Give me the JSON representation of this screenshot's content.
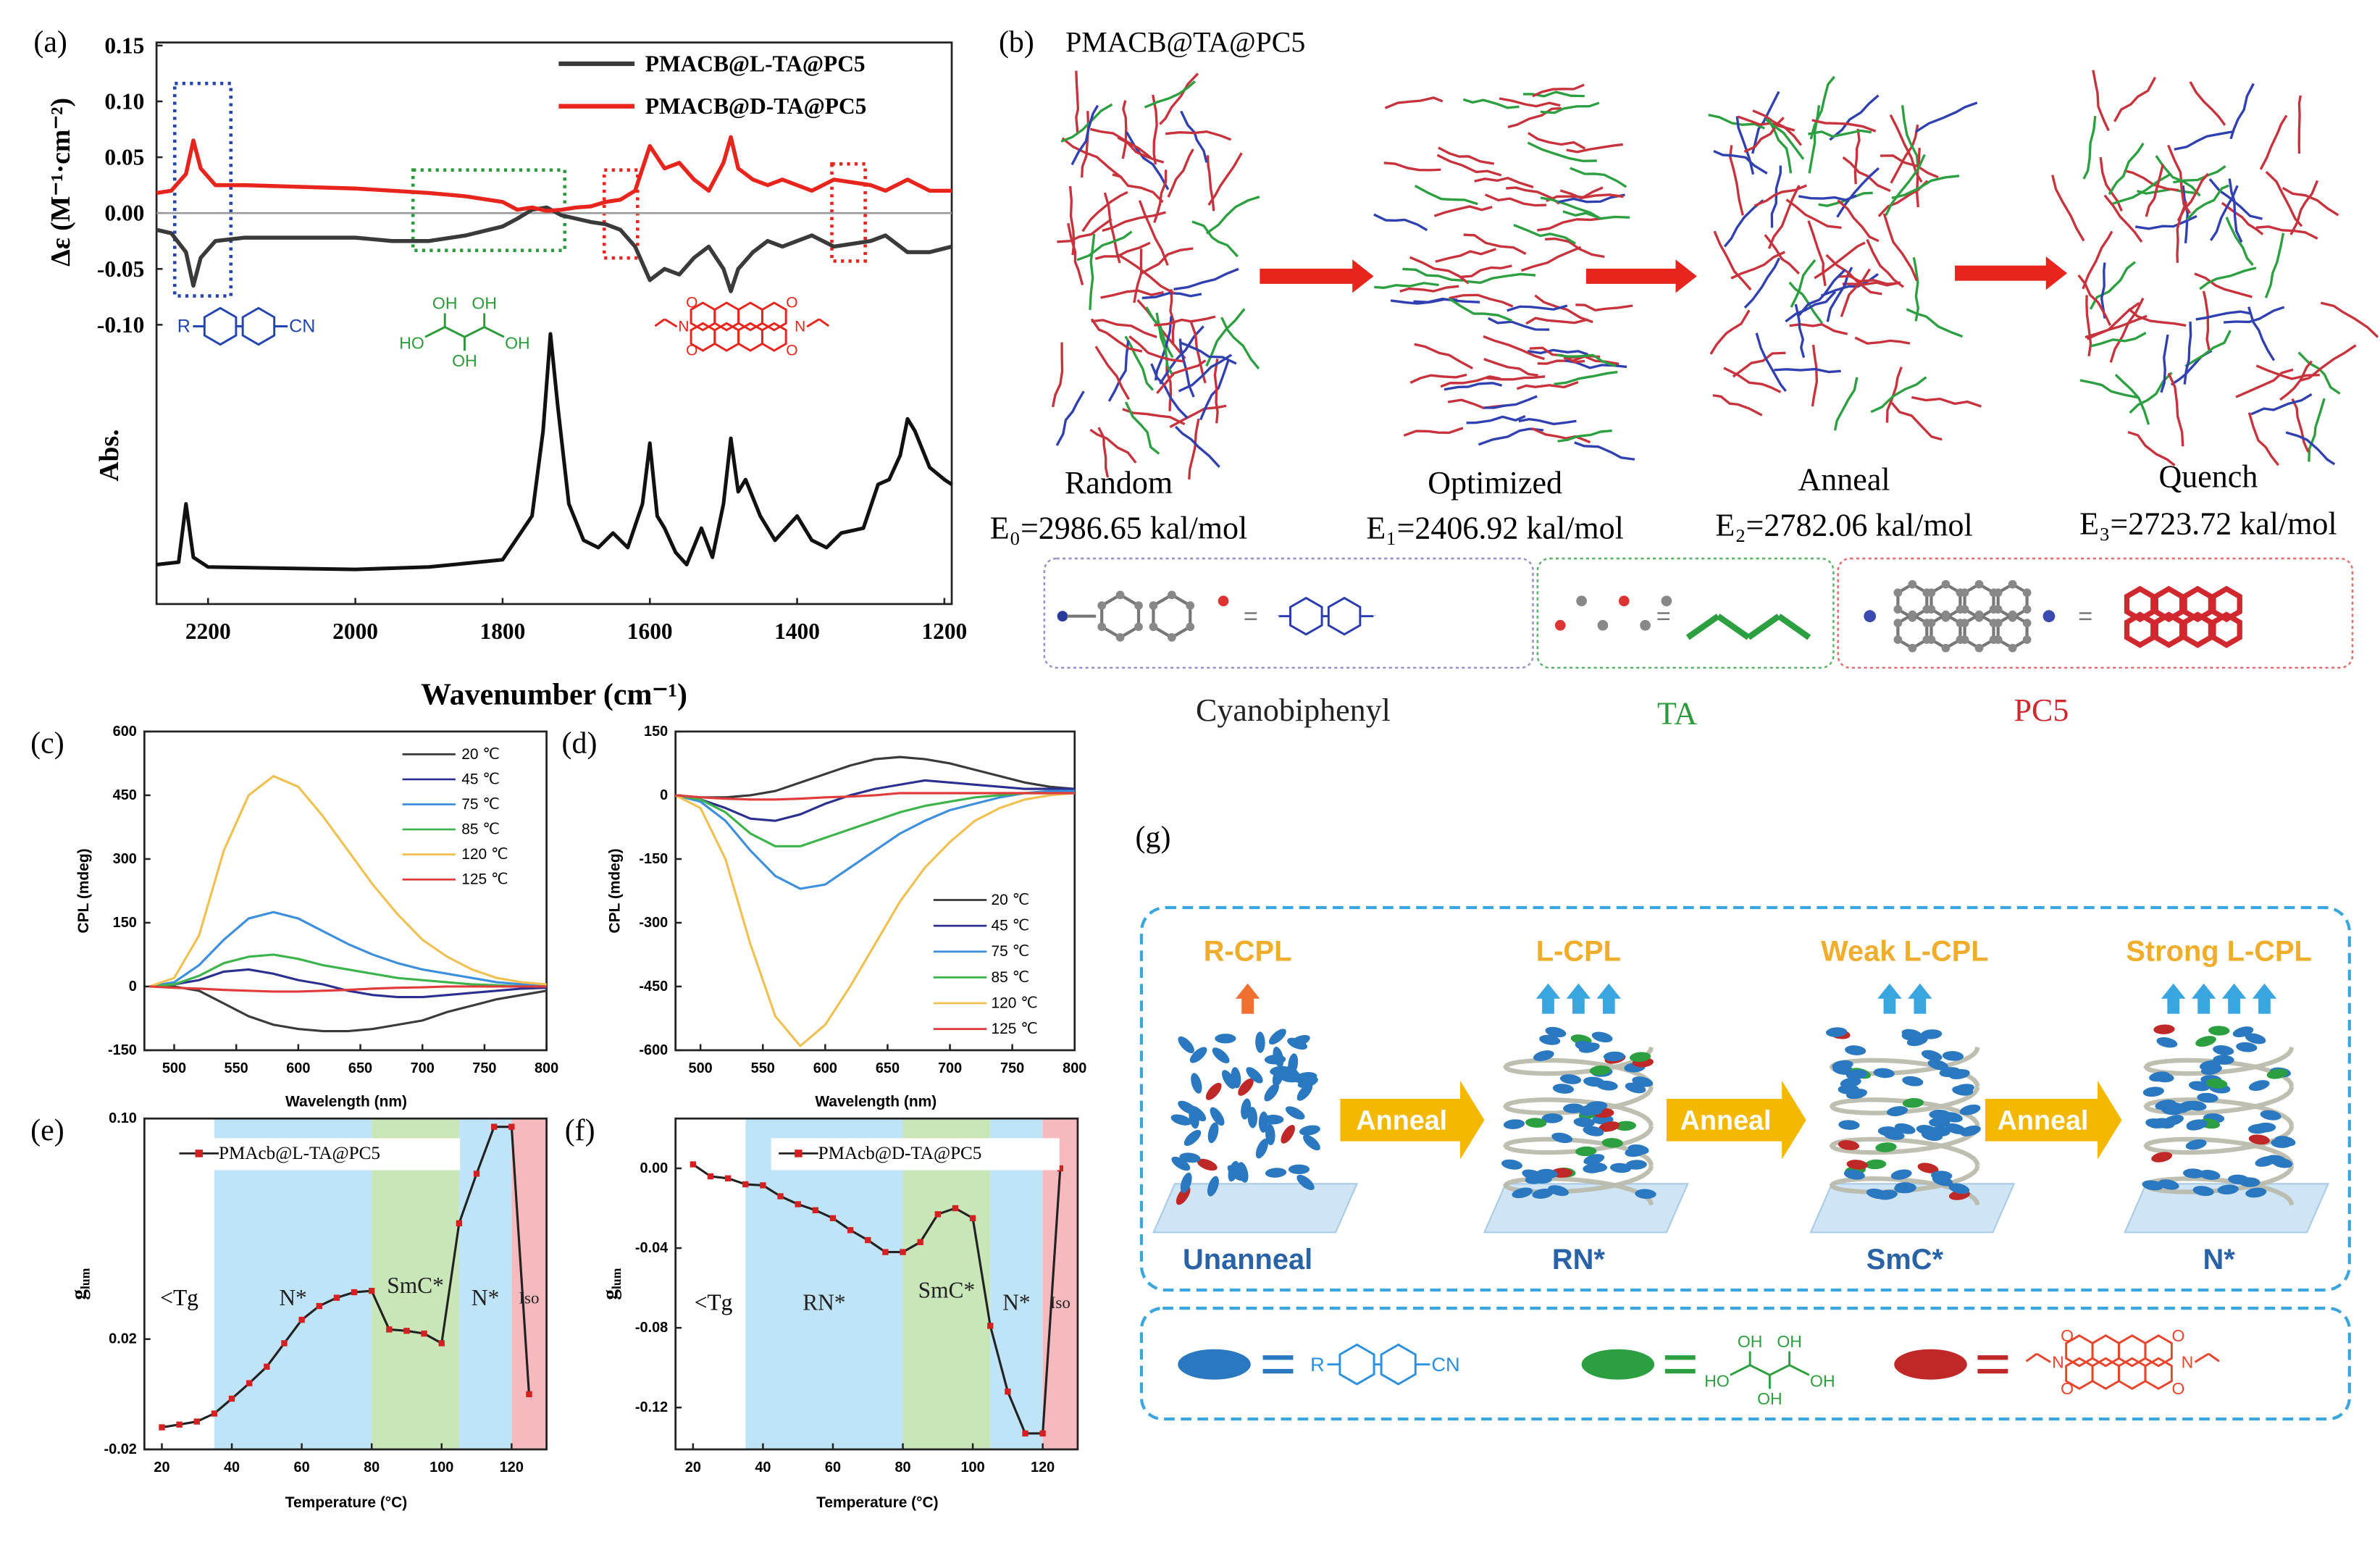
{
  "chart_data": [
    {
      "type": "line",
      "panel_label": "(a)",
      "y_label": "Δε (M⁻¹·cm⁻²)",
      "x_label": "Wavenumber (cm⁻¹)",
      "x": [
        2270,
        2250,
        2230,
        2220,
        2210,
        2190,
        2150,
        2100,
        2000,
        1950,
        1900,
        1850,
        1800,
        1780,
        1760,
        1740,
        1720,
        1700,
        1680,
        1660,
        1640,
        1620,
        1600,
        1580,
        1560,
        1540,
        1520,
        1500,
        1490,
        1480,
        1460,
        1440,
        1420,
        1400,
        1380,
        1350,
        1300,
        1280,
        1250,
        1220,
        1190
      ],
      "series": [
        {
          "name": "PMACB@L-TA@PC5",
          "color": "#3a3a3a",
          "values": [
            -0.015,
            -0.018,
            -0.035,
            -0.065,
            -0.04,
            -0.025,
            -0.022,
            -0.022,
            -0.022,
            -0.025,
            -0.025,
            -0.02,
            -0.012,
            -0.005,
            0.003,
            0.005,
            -0.002,
            -0.005,
            -0.008,
            -0.01,
            -0.015,
            -0.03,
            -0.06,
            -0.05,
            -0.055,
            -0.04,
            -0.03,
            -0.05,
            -0.07,
            -0.05,
            -0.035,
            -0.025,
            -0.03,
            -0.025,
            -0.02,
            -0.03,
            -0.025,
            -0.02,
            -0.035,
            -0.035,
            -0.03
          ]
        },
        {
          "name": "PMACB@D-TA@PC5",
          "color": "#e8251c",
          "values": [
            0.018,
            0.02,
            0.035,
            0.065,
            0.04,
            0.025,
            0.025,
            0.024,
            0.022,
            0.02,
            0.018,
            0.015,
            0.01,
            0.003,
            0.005,
            0.002,
            0.003,
            0.005,
            0.006,
            0.01,
            0.012,
            0.02,
            0.06,
            0.04,
            0.045,
            0.03,
            0.02,
            0.045,
            0.068,
            0.04,
            0.03,
            0.025,
            0.03,
            0.025,
            0.02,
            0.03,
            0.025,
            0.02,
            0.03,
            0.02,
            0.02
          ]
        }
      ],
      "xlim": [
        2270,
        1190
      ],
      "xticks": [
        2200,
        2000,
        1800,
        1600,
        1400,
        1200
      ],
      "ylim": [
        -0.1,
        0.15
      ],
      "yticks": [
        {
          "value": -0.1,
          "label": "-0.10"
        },
        -0.05,
        {
          "value": 0,
          "label": "0.00"
        },
        0.05,
        {
          "value": 0.1,
          "label": "0.10"
        },
        0.15
      ]
    },
    {
      "type": "line",
      "y_label": "Abs.",
      "x": [
        2270,
        2240,
        2230,
        2220,
        2200,
        2000,
        1900,
        1800,
        1760,
        1745,
        1735,
        1725,
        1710,
        1690,
        1670,
        1650,
        1630,
        1610,
        1600,
        1590,
        1580,
        1565,
        1550,
        1530,
        1515,
        1500,
        1490,
        1480,
        1470,
        1450,
        1430,
        1400,
        1380,
        1360,
        1340,
        1310,
        1290,
        1275,
        1260,
        1250,
        1240,
        1220,
        1200,
        1190
      ],
      "values": [
        0.05,
        0.06,
        0.3,
        0.08,
        0.04,
        0.03,
        0.04,
        0.07,
        0.25,
        0.6,
        1,
        0.7,
        0.3,
        0.15,
        0.12,
        0.18,
        0.12,
        0.3,
        0.55,
        0.25,
        0.2,
        0.1,
        0.05,
        0.2,
        0.08,
        0.3,
        0.57,
        0.35,
        0.4,
        0.25,
        0.15,
        0.25,
        0.15,
        0.12,
        0.18,
        0.2,
        0.38,
        0.4,
        0.5,
        0.65,
        0.6,
        0.45,
        0.4,
        0.38
      ],
      "color": "#111111",
      "xlim": [
        2270,
        1190
      ],
      "ylim": [
        0,
        1
      ]
    },
    {
      "type": "line",
      "panel_label": "(c)",
      "y_label": "CPL (mdeg)",
      "x_label": "Wavelength (nm)",
      "x": [
        480,
        500,
        520,
        540,
        560,
        580,
        600,
        620,
        640,
        660,
        680,
        700,
        720,
        740,
        760,
        780,
        800
      ],
      "series": [
        {
          "name": "20 ℃",
          "color": "#3a3a3a",
          "values": [
            0,
            0,
            -10,
            -40,
            -70,
            -90,
            -100,
            -105,
            -105,
            -100,
            -90,
            -80,
            -60,
            -45,
            -30,
            -20,
            -10
          ]
        },
        {
          "name": "45 ℃",
          "color": "#2b2f8f",
          "values": [
            0,
            5,
            15,
            35,
            40,
            30,
            15,
            5,
            -10,
            -20,
            -25,
            -25,
            -20,
            -15,
            -10,
            -5,
            -3
          ]
        },
        {
          "name": "75 ℃",
          "color": "#3b8fdc",
          "values": [
            0,
            10,
            50,
            110,
            160,
            175,
            160,
            130,
            100,
            75,
            55,
            40,
            30,
            20,
            10,
            5,
            0
          ]
        },
        {
          "name": "85 ℃",
          "color": "#3cb44b",
          "values": [
            0,
            5,
            25,
            55,
            70,
            75,
            65,
            50,
            40,
            30,
            20,
            15,
            10,
            5,
            3,
            0,
            0
          ]
        },
        {
          "name": "120 ℃",
          "color": "#f0c050",
          "values": [
            0,
            20,
            120,
            320,
            450,
            495,
            470,
            400,
            320,
            240,
            170,
            110,
            70,
            40,
            20,
            10,
            5
          ]
        },
        {
          "name": "125 ℃",
          "color": "#e03c3c",
          "values": [
            0,
            -3,
            -5,
            -8,
            -10,
            -12,
            -12,
            -10,
            -8,
            -5,
            -3,
            -2,
            0,
            0,
            0,
            0,
            0
          ]
        }
      ],
      "xlim": [
        476,
        800
      ],
      "xticks": [
        500,
        550,
        600,
        650,
        700,
        750,
        800
      ],
      "ylim": [
        -150,
        600
      ],
      "yticks": [
        -150,
        0,
        150,
        300,
        450,
        600
      ]
    },
    {
      "type": "line",
      "panel_label": "(d)",
      "y_label": "CPL (mdeg)",
      "x_label": "Wavelength (nm)",
      "x": [
        480,
        500,
        520,
        540,
        560,
        580,
        600,
        620,
        640,
        660,
        680,
        700,
        720,
        740,
        760,
        780,
        800
      ],
      "series": [
        {
          "name": "20 ℃",
          "color": "#3a3a3a",
          "values": [
            0,
            -5,
            -5,
            0,
            10,
            30,
            50,
            70,
            85,
            90,
            85,
            75,
            60,
            45,
            30,
            20,
            15
          ]
        },
        {
          "name": "45 ℃",
          "color": "#2b2f8f",
          "values": [
            0,
            -10,
            -30,
            -55,
            -60,
            -45,
            -20,
            0,
            15,
            25,
            35,
            30,
            25,
            20,
            15,
            15,
            15
          ]
        },
        {
          "name": "75 ℃",
          "color": "#3b8fdc",
          "values": [
            0,
            -15,
            -60,
            -130,
            -190,
            -220,
            -210,
            -170,
            -130,
            -90,
            -60,
            -35,
            -20,
            -5,
            5,
            10,
            10
          ]
        },
        {
          "name": "85 ℃",
          "color": "#3cb44b",
          "values": [
            0,
            -10,
            -40,
            -90,
            -120,
            -120,
            -100,
            -80,
            -60,
            -40,
            -25,
            -15,
            -5,
            0,
            5,
            5,
            5
          ]
        },
        {
          "name": "120 ℃",
          "color": "#f0c050",
          "values": [
            0,
            -30,
            -150,
            -350,
            -520,
            -590,
            -540,
            -450,
            -350,
            -250,
            -170,
            -110,
            -60,
            -30,
            -10,
            0,
            5
          ]
        },
        {
          "name": "125 ℃",
          "color": "#e03c3c",
          "values": [
            0,
            -5,
            -8,
            -10,
            -10,
            -8,
            -5,
            -3,
            0,
            5,
            5,
            5,
            5,
            5,
            5,
            5,
            5
          ]
        }
      ],
      "xlim": [
        480,
        800
      ],
      "xticks": [
        500,
        550,
        600,
        650,
        700,
        750,
        800
      ],
      "ylim": [
        -600,
        150
      ],
      "yticks": [
        -600,
        -450,
        -300,
        -150,
        0,
        150
      ]
    },
    {
      "type": "line",
      "panel_label": "(e)",
      "y_label": {
        "main": "g",
        "sub": "lum"
      },
      "x_label": "Temperature (°C)",
      "annotation": "<Tg",
      "x": [
        20,
        25,
        30,
        35,
        40,
        45,
        50,
        55,
        60,
        65,
        70,
        75,
        80,
        85,
        90,
        95,
        100,
        105,
        110,
        115,
        120,
        125
      ],
      "series": [
        {
          "name": "PMAcb@L-TA@PC5",
          "color": "#222222",
          "marker_color": "#d42020",
          "values": [
            -0.012,
            -0.011,
            -0.0099,
            -0.007,
            -0.0016,
            0.004,
            0.01,
            0.0185,
            0.027,
            0.032,
            0.035,
            0.037,
            0.0375,
            0.0235,
            0.023,
            0.022,
            0.0185,
            0.062,
            0.08,
            0.097,
            0.097,
            0
          ]
        }
      ],
      "regions": [
        {
          "label": "N*",
          "from": 35,
          "to": 80,
          "color": "#bfe4f8"
        },
        {
          "label": "SmC*",
          "from": 80,
          "to": 105,
          "color": "#c8e6b8"
        },
        {
          "label": "N*",
          "from": 105,
          "to": 120,
          "color": "#bfe4f8"
        },
        {
          "label": "Iso",
          "from": 120,
          "to": 130,
          "color": "#f6b9be"
        }
      ],
      "xlim": [
        15,
        130
      ],
      "xticks": [
        20,
        40,
        60,
        80,
        100,
        120
      ],
      "ylim": [
        -0.02,
        0.1
      ],
      "yticks": [
        -0.02,
        0.02,
        {
          "value": 0.1,
          "label": "0.10"
        }
      ]
    },
    {
      "type": "line",
      "panel_label": "(f)",
      "y_label": {
        "main": "g",
        "sub": "lum"
      },
      "x_label": "Temperature (°C)",
      "annotation": "<Tg",
      "x": [
        20,
        25,
        30,
        35,
        40,
        45,
        50,
        55,
        60,
        65,
        70,
        75,
        80,
        85,
        90,
        95,
        100,
        105,
        110,
        115,
        120,
        125
      ],
      "series": [
        {
          "name": "PMAcb@D-TA@PC5",
          "color": "#222222",
          "marker_color": "#d42020",
          "values": [
            0.002,
            -0.004,
            -0.005,
            -0.008,
            -0.0085,
            -0.014,
            -0.018,
            -0.021,
            -0.025,
            -0.031,
            -0.036,
            -0.042,
            -0.042,
            -0.037,
            -0.023,
            -0.02,
            -0.025,
            -0.079,
            -0.112,
            -0.133,
            -0.133,
            0
          ]
        }
      ],
      "regions": [
        {
          "label": "RN*",
          "from": 35,
          "to": 80,
          "color": "#bfe4f8"
        },
        {
          "label": "SmC*",
          "from": 80,
          "to": 105,
          "color": "#c8e6b8"
        },
        {
          "label": "N*",
          "from": 105,
          "to": 120,
          "color": "#bfe4f8"
        },
        {
          "label": "Iso",
          "from": 120,
          "to": 130,
          "color": "#f6b9be"
        }
      ],
      "xlim": [
        15,
        130
      ],
      "xticks": [
        20,
        40,
        60,
        80,
        100,
        120
      ],
      "ylim": [
        -0.141,
        0.025
      ],
      "yticks": [
        -0.12,
        -0.08,
        -0.04,
        {
          "value": 0,
          "label": "0.00"
        }
      ]
    }
  ],
  "structure_labels": {
    "r": "R",
    "cn": "CN",
    "oh": "OH",
    "ho": "HO",
    "n": "N",
    "o": "O"
  },
  "panel_b": {
    "label": "(b)",
    "title": "PMACB@TA@PC5",
    "stages": [
      {
        "name": "Random",
        "energy": "E₀=2986.65 kal/mol"
      },
      {
        "name": "Optimized",
        "energy": "E₁=2406.92 kal/mol"
      },
      {
        "name": "Anneal",
        "energy": "E₂=2782.06 kal/mol"
      },
      {
        "name": "Quench",
        "energy": "E₃=2723.72 kal/mol"
      }
    ],
    "components": [
      "Cyanobiphenyl",
      "TA",
      "PC5"
    ]
  },
  "panel_g": {
    "label": "(g)",
    "emissions": [
      "R-CPL",
      "L-CPL",
      "Weak L-CPL",
      "Strong L-CPL"
    ],
    "process": "Anneal",
    "phases": [
      "Unanneal",
      "RN*",
      "SmC*",
      "N*"
    ]
  }
}
